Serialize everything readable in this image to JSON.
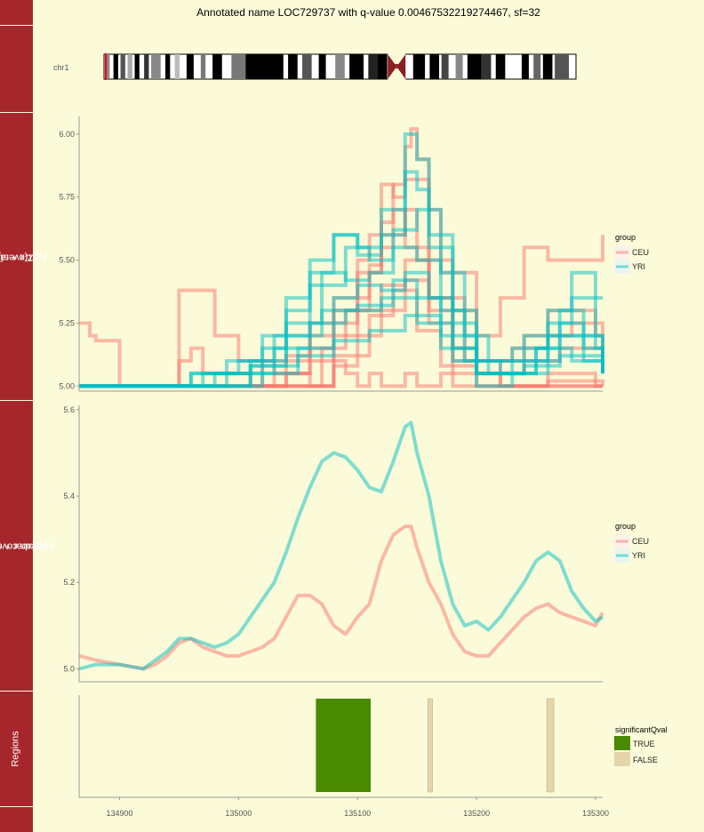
{
  "title": "Annotated name LOC729737 with q-value 0.00467532219274467, sf=32",
  "colors": {
    "CEU": "#f8766d",
    "YRI": "#00bfc4",
    "TRUE": "#4a8a00",
    "FALSE": "#e5d5aa",
    "strip": "#a5262b",
    "background": "#fcfbd9"
  },
  "ideogram": {
    "chromosome": "chr1"
  },
  "strips": {
    "coverage": [
      "Coverage",
      "log2(x + sf)"
    ],
    "mean": [
      "Mean coverage",
      "log2(xbar + sf)"
    ],
    "regions": "Regions"
  },
  "legends": {
    "coverage": {
      "title": "group",
      "items": [
        "CEU",
        "YRI"
      ]
    },
    "mean": {
      "title": "group",
      "items": [
        "CEU",
        "YRI"
      ]
    },
    "regions": {
      "title": "significantQval",
      "items": [
        "TRUE",
        "FALSE"
      ]
    }
  },
  "chart_data": [
    {
      "type": "line",
      "panel": "Coverage",
      "ylabel": "Coverage log2(x + sf)",
      "xlim": [
        134866,
        135306
      ],
      "ylim": [
        4.98,
        6.07
      ],
      "yticks": [
        5.0,
        5.25,
        5.5,
        5.75,
        6.0
      ],
      "ytick_labels": [
        "5.00",
        "5.25",
        "5.50",
        "5.75",
        "6.00"
      ],
      "note": "many overlapping per-sample coverage step lines",
      "series": [
        {
          "name": "CEU",
          "samples": [
            {
              "x": [
                134866,
                134870,
                134875,
                134880,
                134900,
                134940,
                134950,
                134960,
                134970,
                135010,
                135020,
                135030,
                135060,
                135070,
                135080,
                135090,
                135100,
                135110,
                135120,
                135130,
                135140,
                135150,
                135160,
                135170,
                135180,
                135200,
                135250,
                135300,
                135306
              ],
              "y": [
                5.25,
                5.25,
                5.2,
                5.18,
                5.0,
                5.0,
                5.1,
                5.15,
                5.05,
                5.0,
                5.1,
                5.05,
                5.0,
                5.0,
                5.1,
                5.05,
                5.0,
                5.05,
                5.0,
                5.0,
                5.05,
                5.0,
                5.0,
                5.05,
                5.0,
                5.0,
                5.0,
                5.0,
                5.0
              ]
            },
            {
              "x": [
                134866,
                134940,
                134950,
                134960,
                134980,
                135000,
                135040,
                135060,
                135080,
                135100,
                135110,
                135120,
                135130,
                135140,
                135145,
                135150,
                135160,
                135170,
                135200,
                135220,
                135240,
                135260,
                135300,
                135306
              ],
              "y": [
                5.0,
                5.0,
                5.38,
                5.38,
                5.2,
                5.1,
                5.12,
                5.25,
                5.3,
                5.5,
                5.6,
                5.8,
                5.75,
                5.95,
                6.02,
                5.9,
                5.7,
                5.45,
                5.2,
                5.35,
                5.55,
                5.5,
                5.5,
                5.6
              ]
            },
            {
              "x": [
                134866,
                135000,
                135040,
                135060,
                135080,
                135100,
                135120,
                135130,
                135140,
                135160,
                135180,
                135200,
                135230,
                135260,
                135300,
                135306
              ],
              "y": [
                5.0,
                5.0,
                5.1,
                5.2,
                5.35,
                5.45,
                5.65,
                5.8,
                5.82,
                5.5,
                5.3,
                5.1,
                5.15,
                5.3,
                5.2,
                5.2
              ]
            },
            {
              "x": [
                134866,
                135050,
                135070,
                135090,
                135110,
                135120,
                135130,
                135140,
                135160,
                135180,
                135220,
                135260,
                135300,
                135306
              ],
              "y": [
                5.0,
                5.0,
                5.15,
                5.3,
                5.45,
                5.55,
                5.7,
                5.55,
                5.3,
                5.1,
                5.0,
                5.05,
                5.0,
                5.0
              ]
            },
            {
              "x": [
                134866,
                135020,
                135040,
                135060,
                135080,
                135100,
                135110,
                135120,
                135140,
                135150,
                135160,
                135180,
                135200,
                135240,
                135280,
                135306
              ],
              "y": [
                5.0,
                5.0,
                5.05,
                5.15,
                5.25,
                5.35,
                5.48,
                5.6,
                5.7,
                5.5,
                5.35,
                5.15,
                5.05,
                5.2,
                5.25,
                5.05
              ]
            },
            {
              "x": [
                134866,
                135000,
                135030,
                135060,
                135080,
                135100,
                135120,
                135140,
                135160,
                135190,
                135230,
                135270,
                135306
              ],
              "y": [
                5.0,
                5.0,
                5.05,
                5.1,
                5.2,
                5.3,
                5.4,
                5.5,
                5.35,
                5.1,
                5.1,
                5.15,
                5.05
              ]
            },
            {
              "x": [
                134866,
                135060,
                135080,
                135100,
                135120,
                135140,
                135160,
                135180,
                135220,
                135260,
                135306
              ],
              "y": [
                5.0,
                5.0,
                5.08,
                5.2,
                5.3,
                5.42,
                5.25,
                5.05,
                5.0,
                5.02,
                5.0
              ]
            },
            {
              "x": [
                134866,
                135050,
                135080,
                135110,
                135130,
                135150,
                135170,
                135200,
                135306
              ],
              "y": [
                5.0,
                5.0,
                5.12,
                5.28,
                5.38,
                5.22,
                5.08,
                5.0,
                5.0
              ]
            }
          ]
        },
        {
          "name": "YRI",
          "samples": [
            {
              "x": [
                134866,
                134900,
                134960,
                134990,
                135020,
                135040,
                135060,
                135080,
                135100,
                135120,
                135140,
                135150,
                135160,
                135180,
                135200,
                135230,
                135260,
                135280,
                135300,
                135306
              ],
              "y": [
                5.0,
                5.0,
                5.05,
                5.1,
                5.2,
                5.35,
                5.5,
                5.6,
                5.55,
                5.7,
                6.0,
                5.9,
                5.6,
                5.3,
                5.1,
                5.15,
                5.3,
                5.45,
                5.35,
                5.35
              ]
            },
            {
              "x": [
                134866,
                134950,
                134980,
                135020,
                135040,
                135060,
                135080,
                135100,
                135120,
                135140,
                135150,
                135160,
                135180,
                135200,
                135230,
                135260,
                135280,
                135300,
                135306
              ],
              "y": [
                5.0,
                5.0,
                5.05,
                5.15,
                5.3,
                5.45,
                5.6,
                5.52,
                5.6,
                5.85,
                5.78,
                5.55,
                5.25,
                5.05,
                5.1,
                5.25,
                5.35,
                5.15,
                5.15
              ]
            },
            {
              "x": [
                134866,
                134960,
                134990,
                135030,
                135060,
                135090,
                135110,
                135130,
                135150,
                135170,
                135190,
                135210,
                135240,
                135270,
                135290,
                135306
              ],
              "y": [
                5.0,
                5.0,
                5.05,
                5.2,
                5.4,
                5.55,
                5.5,
                5.62,
                5.7,
                5.45,
                5.2,
                5.1,
                5.2,
                5.3,
                5.2,
                5.1
              ]
            },
            {
              "x": [
                134866,
                134970,
                135010,
                135040,
                135070,
                135090,
                135110,
                135130,
                135150,
                135170,
                135190,
                135220,
                135250,
                135270,
                135290,
                135306
              ],
              "y": [
                5.0,
                5.0,
                5.1,
                5.25,
                5.45,
                5.42,
                5.45,
                5.55,
                5.5,
                5.3,
                5.1,
                5.05,
                5.15,
                5.25,
                5.1,
                5.05
              ]
            },
            {
              "x": [
                134866,
                134990,
                135020,
                135050,
                135080,
                135100,
                135120,
                135140,
                135160,
                135180,
                135200,
                135230,
                135260,
                135290,
                135306
              ],
              "y": [
                5.0,
                5.0,
                5.05,
                5.15,
                5.35,
                5.4,
                5.38,
                5.45,
                5.35,
                5.15,
                5.0,
                5.05,
                5.2,
                5.15,
                5.05
              ]
            },
            {
              "x": [
                134866,
                134980,
                135010,
                135040,
                135070,
                135100,
                135130,
                135150,
                135170,
                135200,
                135240,
                135270,
                135306
              ],
              "y": [
                5.0,
                5.0,
                5.08,
                5.2,
                5.3,
                5.32,
                5.42,
                5.35,
                5.2,
                5.05,
                5.1,
                5.2,
                5.08
              ]
            },
            {
              "x": [
                134866,
                134920,
                134960,
                135000,
                135030,
                135060,
                135090,
                135120,
                135150,
                135180,
                135210,
                135250,
                135280,
                135306
              ],
              "y": [
                5.0,
                5.0,
                5.05,
                5.1,
                5.15,
                5.25,
                5.3,
                5.35,
                5.25,
                5.1,
                5.05,
                5.15,
                5.1,
                5.05
              ]
            },
            {
              "x": [
                134866,
                134930,
                134970,
                135010,
                135050,
                135080,
                135110,
                135140,
                135170,
                135200,
                135240,
                135270,
                135306
              ],
              "y": [
                5.0,
                5.0,
                5.05,
                5.08,
                5.12,
                5.18,
                5.22,
                5.28,
                5.15,
                5.05,
                5.08,
                5.12,
                5.05
              ]
            }
          ]
        }
      ]
    },
    {
      "type": "line",
      "panel": "Mean coverage",
      "ylabel": "Mean coverage log2(xbar + sf)",
      "xlim": [
        134866,
        135306
      ],
      "ylim": [
        4.97,
        5.61
      ],
      "yticks": [
        5.0,
        5.2,
        5.4,
        5.6
      ],
      "ytick_labels": [
        "5.0",
        "5.2",
        "5.4",
        "5.6"
      ],
      "series": [
        {
          "name": "CEU",
          "x": [
            134866,
            134880,
            134900,
            134920,
            134930,
            134940,
            134950,
            134960,
            134970,
            134980,
            134990,
            135000,
            135010,
            135020,
            135030,
            135040,
            135050,
            135060,
            135070,
            135080,
            135090,
            135100,
            135110,
            135120,
            135130,
            135140,
            135145,
            135150,
            135160,
            135170,
            135180,
            135190,
            135200,
            135210,
            135220,
            135230,
            135240,
            135250,
            135260,
            135270,
            135280,
            135290,
            135300,
            135306
          ],
          "y": [
            5.03,
            5.02,
            5.01,
            5.0,
            5.01,
            5.03,
            5.06,
            5.07,
            5.05,
            5.04,
            5.03,
            5.03,
            5.04,
            5.05,
            5.07,
            5.12,
            5.17,
            5.17,
            5.15,
            5.1,
            5.08,
            5.12,
            5.15,
            5.25,
            5.31,
            5.33,
            5.33,
            5.28,
            5.2,
            5.15,
            5.08,
            5.04,
            5.03,
            5.03,
            5.06,
            5.09,
            5.12,
            5.14,
            5.15,
            5.13,
            5.12,
            5.11,
            5.1,
            5.13
          ]
        },
        {
          "name": "YRI",
          "x": [
            134866,
            134880,
            134900,
            134920,
            134930,
            134940,
            134950,
            134960,
            134970,
            134980,
            134990,
            135000,
            135010,
            135020,
            135030,
            135040,
            135050,
            135060,
            135070,
            135080,
            135090,
            135100,
            135110,
            135120,
            135130,
            135140,
            135145,
            135150,
            135160,
            135170,
            135180,
            135190,
            135200,
            135210,
            135220,
            135230,
            135240,
            135250,
            135260,
            135270,
            135280,
            135290,
            135300,
            135306
          ],
          "y": [
            5.0,
            5.01,
            5.01,
            5.0,
            5.02,
            5.04,
            5.07,
            5.07,
            5.06,
            5.05,
            5.06,
            5.08,
            5.12,
            5.16,
            5.2,
            5.27,
            5.35,
            5.42,
            5.48,
            5.5,
            5.49,
            5.46,
            5.42,
            5.41,
            5.48,
            5.56,
            5.57,
            5.5,
            5.4,
            5.25,
            5.15,
            5.1,
            5.11,
            5.09,
            5.12,
            5.16,
            5.2,
            5.25,
            5.27,
            5.25,
            5.18,
            5.14,
            5.11,
            5.12
          ]
        }
      ]
    },
    {
      "type": "bar",
      "panel": "Regions",
      "xlim": [
        134866,
        135306
      ],
      "xticks": [
        134900,
        135000,
        135100,
        135200,
        135300
      ],
      "xtick_labels": [
        "134900",
        "135000",
        "135100",
        "135200",
        "135300"
      ],
      "regions": [
        {
          "start": 135065,
          "end": 135111,
          "significantQval": "TRUE"
        },
        {
          "start": 135159,
          "end": 135163,
          "significantQval": "FALSE"
        },
        {
          "start": 135259,
          "end": 135265,
          "significantQval": "FALSE"
        }
      ]
    }
  ]
}
